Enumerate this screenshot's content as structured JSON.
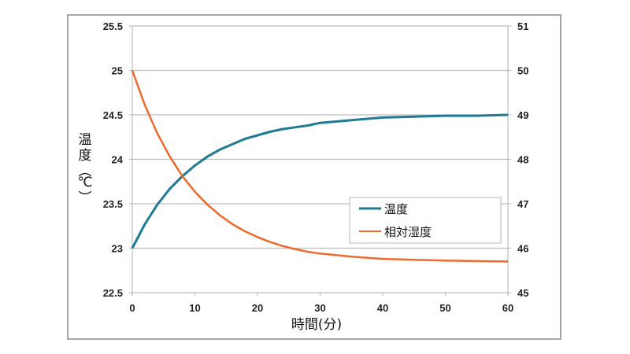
{
  "chart_data": {
    "type": "line",
    "title": "",
    "xlabel": "時間(分)",
    "ylabel": "温度(℃)",
    "y2label": "",
    "xlim": [
      0,
      60
    ],
    "ylim": [
      22.5,
      25.5
    ],
    "y2lim": [
      45,
      51
    ],
    "x_ticks": [
      0,
      10,
      20,
      30,
      40,
      50,
      60
    ],
    "y_ticks": [
      "22.5",
      "23",
      "23.5",
      "24",
      "24.5",
      "25",
      "25.5"
    ],
    "y2_ticks": [
      "45",
      "46",
      "47",
      "48",
      "49",
      "50",
      "51"
    ],
    "grid": true,
    "legend_position": "inside-right",
    "x": [
      0,
      2,
      4,
      6,
      8,
      10,
      12,
      14,
      16,
      18,
      20,
      22,
      24,
      26,
      28,
      30,
      35,
      40,
      45,
      50,
      55,
      60
    ],
    "series": [
      {
        "name": "温度",
        "axis": "left",
        "color": "#1f7a93",
        "values": [
          23.0,
          23.27,
          23.49,
          23.67,
          23.81,
          23.93,
          24.03,
          24.11,
          24.17,
          24.23,
          24.27,
          24.31,
          24.34,
          24.36,
          24.38,
          24.41,
          24.44,
          24.47,
          24.48,
          24.49,
          24.49,
          24.5
        ]
      },
      {
        "name": "相対湿度",
        "axis": "right",
        "color": "#ee6a2c",
        "values": [
          50.0,
          49.22,
          48.58,
          48.06,
          47.62,
          47.27,
          46.98,
          46.74,
          46.54,
          46.38,
          46.25,
          46.14,
          46.05,
          45.98,
          45.92,
          45.88,
          45.81,
          45.76,
          45.74,
          45.72,
          45.71,
          45.7
        ]
      }
    ]
  },
  "legend": {
    "items": [
      {
        "label": "温度",
        "color": "#1f7a93"
      },
      {
        "label": "相対湿度",
        "color": "#ee6a2c"
      }
    ]
  }
}
